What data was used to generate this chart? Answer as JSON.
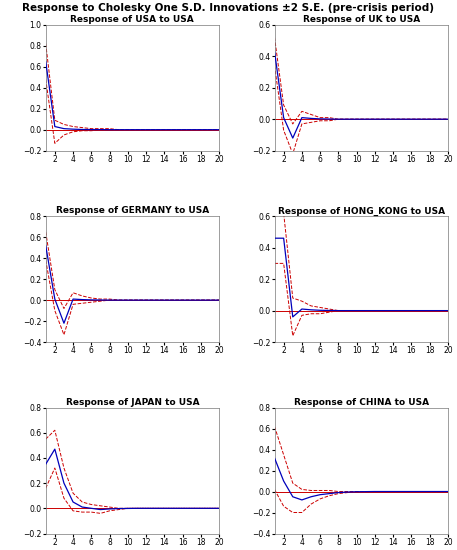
{
  "title": "Response to Cholesky One S.D. Innovations ±2 S.E. (pre-crisis period)",
  "subplots": [
    {
      "title": "Response of USA to USA",
      "ylim": [
        -0.2,
        1.0
      ],
      "yticks": [
        -0.2,
        0.0,
        0.2,
        0.4,
        0.6,
        0.8,
        1.0
      ],
      "irf": [
        0.65,
        0.03,
        0.01,
        0.005,
        0.002,
        0.001,
        0.001,
        0.0,
        0.0,
        0.0,
        0.0,
        0.0,
        0.0,
        0.0,
        0.0,
        0.0,
        0.0,
        0.0,
        0.0,
        0.0
      ],
      "upper": [
        0.82,
        0.09,
        0.05,
        0.03,
        0.02,
        0.01,
        0.01,
        0.01,
        0.0,
        0.0,
        0.0,
        0.0,
        0.0,
        0.0,
        0.0,
        0.0,
        0.0,
        0.0,
        0.0,
        0.0
      ],
      "lower": [
        0.48,
        -0.13,
        -0.05,
        -0.02,
        -0.01,
        -0.01,
        -0.0,
        -0.0,
        -0.0,
        -0.0,
        -0.0,
        -0.0,
        -0.0,
        -0.0,
        -0.0,
        -0.0,
        -0.0,
        -0.0,
        -0.0,
        -0.0
      ]
    },
    {
      "title": "Response of UK to USA",
      "ylim": [
        -0.2,
        0.6
      ],
      "yticks": [
        -0.2,
        0.0,
        0.2,
        0.4,
        0.6
      ],
      "irf": [
        0.43,
        0.01,
        -0.12,
        0.01,
        0.005,
        0.002,
        0.001,
        0.0,
        0.0,
        0.0,
        0.0,
        0.0,
        0.0,
        0.0,
        0.0,
        0.0,
        0.0,
        0.0,
        0.0,
        0.0
      ],
      "upper": [
        0.52,
        0.09,
        -0.03,
        0.05,
        0.03,
        0.01,
        0.01,
        0.0,
        0.0,
        0.0,
        0.0,
        0.0,
        0.0,
        0.0,
        0.0,
        0.0,
        0.0,
        0.0,
        0.0,
        0.0
      ],
      "lower": [
        0.34,
        -0.07,
        -0.22,
        -0.03,
        -0.02,
        -0.01,
        -0.01,
        -0.0,
        -0.0,
        -0.0,
        -0.0,
        -0.0,
        -0.0,
        -0.0,
        -0.0,
        -0.0,
        -0.0,
        -0.0,
        -0.0,
        -0.0
      ]
    },
    {
      "title": "Response of GERMANY to USA",
      "ylim": [
        -0.4,
        0.8
      ],
      "yticks": [
        -0.4,
        -0.2,
        0.0,
        0.2,
        0.4,
        0.6,
        0.8
      ],
      "irf": [
        0.52,
        0.01,
        -0.22,
        0.01,
        0.005,
        0.002,
        0.001,
        0.0,
        0.0,
        0.0,
        0.0,
        0.0,
        0.0,
        0.0,
        0.0,
        0.0,
        0.0,
        0.0,
        0.0,
        0.0
      ],
      "upper": [
        0.65,
        0.1,
        -0.08,
        0.07,
        0.04,
        0.02,
        0.01,
        0.01,
        0.0,
        0.0,
        0.0,
        0.0,
        0.0,
        0.0,
        0.0,
        0.0,
        0.0,
        0.0,
        0.0,
        0.0
      ],
      "lower": [
        0.38,
        -0.1,
        -0.33,
        -0.04,
        -0.03,
        -0.02,
        -0.01,
        -0.0,
        -0.0,
        -0.0,
        -0.0,
        -0.0,
        -0.0,
        -0.0,
        -0.0,
        -0.0,
        -0.0,
        -0.0,
        -0.0,
        -0.0
      ]
    },
    {
      "title": "Response of HONG_KONG to USA",
      "ylim": [
        -0.2,
        0.6
      ],
      "yticks": [
        -0.2,
        0.0,
        0.2,
        0.4,
        0.6
      ],
      "irf": [
        0.46,
        0.46,
        -0.04,
        0.01,
        0.005,
        0.002,
        0.001,
        0.0,
        0.0,
        0.0,
        0.0,
        0.0,
        0.0,
        0.0,
        0.0,
        0.0,
        0.0,
        0.0,
        0.0,
        0.0
      ],
      "upper": [
        0.6,
        0.62,
        0.08,
        0.06,
        0.03,
        0.02,
        0.01,
        0.0,
        0.0,
        0.0,
        0.0,
        0.0,
        0.0,
        0.0,
        0.0,
        0.0,
        0.0,
        0.0,
        0.0,
        0.0
      ],
      "lower": [
        0.3,
        0.3,
        -0.16,
        -0.03,
        -0.02,
        -0.02,
        -0.01,
        -0.0,
        -0.0,
        -0.0,
        -0.0,
        -0.0,
        -0.0,
        -0.0,
        -0.0,
        -0.0,
        -0.0,
        -0.0,
        -0.0,
        -0.0
      ]
    },
    {
      "title": "Response of JAPAN to USA",
      "ylim": [
        -0.2,
        0.8
      ],
      "yticks": [
        -0.2,
        0.0,
        0.2,
        0.4,
        0.6,
        0.8
      ],
      "irf": [
        0.35,
        0.47,
        0.2,
        0.05,
        0.01,
        0.0,
        -0.01,
        -0.005,
        -0.002,
        -0.001,
        0.0,
        0.0,
        0.0,
        0.0,
        0.0,
        0.0,
        0.0,
        0.0,
        0.0,
        0.0
      ],
      "upper": [
        0.55,
        0.62,
        0.32,
        0.12,
        0.05,
        0.03,
        0.02,
        0.01,
        0.0,
        0.0,
        0.0,
        0.0,
        0.0,
        0.0,
        0.0,
        0.0,
        0.0,
        0.0,
        0.0,
        0.0
      ],
      "lower": [
        0.16,
        0.32,
        0.08,
        -0.02,
        -0.03,
        -0.03,
        -0.04,
        -0.02,
        -0.01,
        -0.0,
        -0.0,
        -0.0,
        -0.0,
        -0.0,
        -0.0,
        -0.0,
        -0.0,
        -0.0,
        -0.0,
        -0.0
      ]
    },
    {
      "title": "Response of CHINA to USA",
      "ylim": [
        -0.4,
        0.8
      ],
      "yticks": [
        -0.4,
        -0.2,
        0.0,
        0.2,
        0.4,
        0.6,
        0.8
      ],
      "irf": [
        0.32,
        0.1,
        -0.05,
        -0.08,
        -0.05,
        -0.03,
        -0.02,
        -0.01,
        -0.005,
        -0.002,
        -0.001,
        0.0,
        0.0,
        0.0,
        0.0,
        0.0,
        0.0,
        0.0,
        0.0,
        0.0
      ],
      "upper": [
        0.62,
        0.35,
        0.08,
        0.02,
        0.01,
        0.01,
        0.01,
        0.0,
        0.0,
        0.0,
        0.0,
        0.0,
        0.0,
        0.0,
        0.0,
        0.0,
        0.0,
        0.0,
        0.0,
        0.0
      ],
      "lower": [
        0.02,
        -0.14,
        -0.2,
        -0.2,
        -0.12,
        -0.07,
        -0.04,
        -0.02,
        -0.01,
        -0.0,
        -0.0,
        -0.0,
        -0.0,
        -0.0,
        -0.0,
        -0.0,
        -0.0,
        -0.0,
        -0.0,
        -0.0
      ]
    }
  ],
  "xticks": [
    2,
    4,
    6,
    8,
    10,
    12,
    14,
    16,
    18,
    20
  ],
  "irf_color": "#0000BB",
  "ci_color": "#CC0000",
  "zero_line_color": "#CC0000",
  "background_color": "#ffffff",
  "title_fontsize": 7.5,
  "subplot_title_fontsize": 6.5,
  "tick_fontsize": 5.5,
  "n_periods": 20
}
